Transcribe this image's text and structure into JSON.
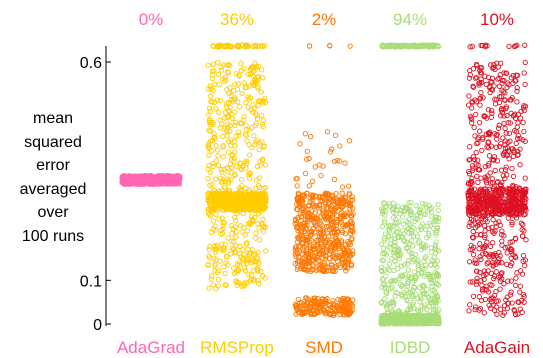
{
  "chart_data": {
    "type": "scatter",
    "ylabel_lines": [
      "mean",
      "squared",
      "error",
      "averaged",
      "over",
      "100 runs"
    ],
    "yticks": [
      {
        "label": "0.6",
        "value": 0.6
      },
      {
        "label": "0.1",
        "value": 0.1
      },
      {
        "label": "0",
        "value": 0.0
      }
    ],
    "ylim": [
      0.0,
      0.6
    ],
    "overflow_value_note": "points drawn above 0.6 are off-scale (clipped) runs",
    "series": [
      {
        "name": "AdaGrad",
        "color": "#ff66b3",
        "percent_label": "0%",
        "clusters": [
          [
            0.32,
            0.34,
            1.0
          ]
        ],
        "diverged_fraction": 0.0
      },
      {
        "name": "RMSProp",
        "color": "#ffcc00",
        "percent_label": "36%",
        "clusters": [
          [
            0.08,
            0.6,
            0.55
          ],
          [
            0.26,
            0.3,
            0.45
          ]
        ],
        "diverged_fraction": 0.36
      },
      {
        "name": "SMD",
        "color": "#ff7700",
        "percent_label": "2%",
        "clusters": [
          [
            0.02,
            0.06,
            0.2
          ],
          [
            0.12,
            0.3,
            0.55
          ],
          [
            0.15,
            0.45,
            0.08
          ]
        ],
        "diverged_fraction": 0.02
      },
      {
        "name": "IDBD",
        "color": "#a8dd77",
        "percent_label": "94%",
        "clusters": [
          [
            0.0,
            0.02,
            0.55
          ],
          [
            0.02,
            0.28,
            0.45
          ]
        ],
        "diverged_fraction": 0.94
      },
      {
        "name": "AdaGain",
        "color": "#dd1122",
        "percent_label": "10%",
        "clusters": [
          [
            0.02,
            0.6,
            0.6
          ],
          [
            0.25,
            0.31,
            0.4
          ]
        ],
        "diverged_fraction": 0.1
      }
    ]
  }
}
